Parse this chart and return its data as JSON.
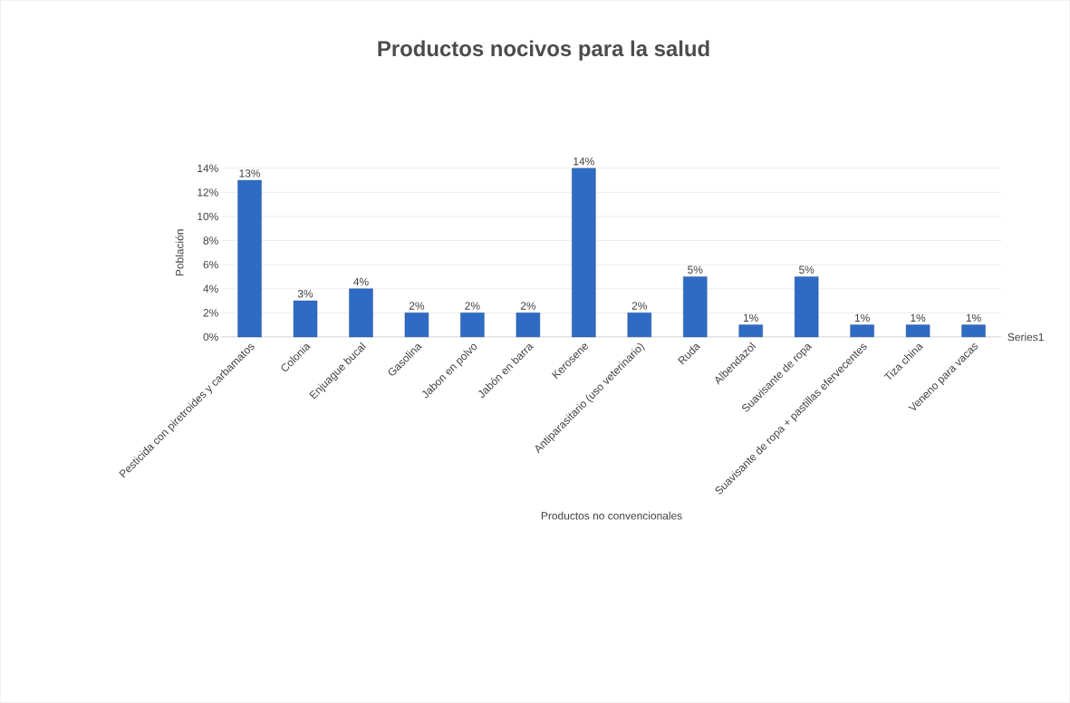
{
  "chart_data": {
    "type": "bar",
    "title": "Productos nocivos para la salud",
    "xlabel": "Productos no convencionales",
    "ylabel": "Población",
    "categories": [
      "Pesticida con piretroides y carbamatos",
      "Colonia",
      "Enjuague bucal",
      "Gasolina",
      "Jabon en polvo",
      "Jabón en barra",
      "Kerosene",
      "Antiparasitario (uso veterinario)",
      "Ruda",
      "Albendazol",
      "Suavisante de ropa",
      "Suavisante de ropa + pastillas efervecentes",
      "Tiza china",
      "Veneno para vacas"
    ],
    "series": [
      {
        "name": "Series1",
        "color": "#2e6bc4",
        "values": [
          13,
          3,
          4,
          2,
          2,
          2,
          14,
          2,
          5,
          1,
          5,
          1,
          1,
          1
        ],
        "value_labels": [
          "13%",
          "3%",
          "4%",
          "2%",
          "2%",
          "2%",
          "14%",
          "2%",
          "5%",
          "1%",
          "5%",
          "1%",
          "1%",
          "1%"
        ]
      }
    ],
    "ylim": [
      0,
      14
    ],
    "yticks": [
      {
        "value": 0,
        "label": "0%"
      },
      {
        "value": 2,
        "label": "2%"
      },
      {
        "value": 4,
        "label": "4%"
      },
      {
        "value": 6,
        "label": "6%"
      },
      {
        "value": 8,
        "label": "8%"
      },
      {
        "value": 10,
        "label": "10%"
      },
      {
        "value": 12,
        "label": "12%"
      },
      {
        "value": 14,
        "label": "14%"
      }
    ],
    "grid": "y"
  }
}
